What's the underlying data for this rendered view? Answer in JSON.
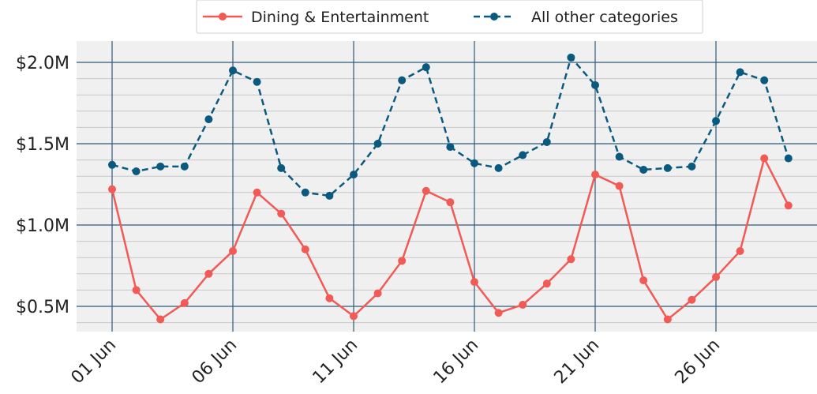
{
  "chart_data": {
    "type": "line",
    "title": "",
    "xlabel": "",
    "ylabel": "",
    "x": [
      "01 Jun",
      "02 Jun",
      "03 Jun",
      "04 Jun",
      "05 Jun",
      "06 Jun",
      "07 Jun",
      "08 Jun",
      "09 Jun",
      "10 Jun",
      "11 Jun",
      "12 Jun",
      "13 Jun",
      "14 Jun",
      "15 Jun",
      "16 Jun",
      "17 Jun",
      "18 Jun",
      "19 Jun",
      "20 Jun",
      "21 Jun",
      "22 Jun",
      "23 Jun",
      "24 Jun",
      "25 Jun",
      "26 Jun",
      "27 Jun",
      "28 Jun",
      "29 Jun"
    ],
    "x_tick_labels": [
      "01 Jun",
      "06 Jun",
      "11 Jun",
      "16 Jun",
      "21 Jun",
      "26 Jun"
    ],
    "y_tick_labels": [
      "$0.5M",
      "$1.0M",
      "$1.5M",
      "$2.0M"
    ],
    "y_ticks": [
      0.5,
      1.0,
      1.5,
      2.0
    ],
    "ylim": [
      0.33,
      2.06
    ],
    "y_unit": "millions of dollars",
    "grid": true,
    "legend_position": "top-center",
    "series": [
      {
        "name": "Dining & Entertainment",
        "color": "#f15a55",
        "line_style": "solid",
        "values": [
          1.22,
          0.6,
          0.42,
          0.52,
          0.7,
          0.84,
          1.2,
          1.07,
          0.85,
          0.55,
          0.44,
          0.58,
          0.78,
          1.21,
          1.14,
          0.65,
          0.46,
          0.51,
          0.64,
          0.79,
          1.31,
          1.24,
          0.66,
          0.42,
          0.54,
          0.68,
          0.84,
          1.41,
          1.12
        ]
      },
      {
        "name": "All other categories",
        "color": "#0a5a7f",
        "line_style": "dashed",
        "values": [
          1.37,
          1.33,
          1.36,
          1.36,
          1.65,
          1.95,
          1.88,
          1.35,
          1.2,
          1.18,
          1.31,
          1.5,
          1.89,
          1.97,
          1.48,
          1.38,
          1.35,
          1.43,
          1.51,
          2.03,
          1.86,
          1.42,
          1.34,
          1.35,
          1.36,
          1.64,
          1.94,
          1.89,
          1.41
        ]
      }
    ]
  }
}
